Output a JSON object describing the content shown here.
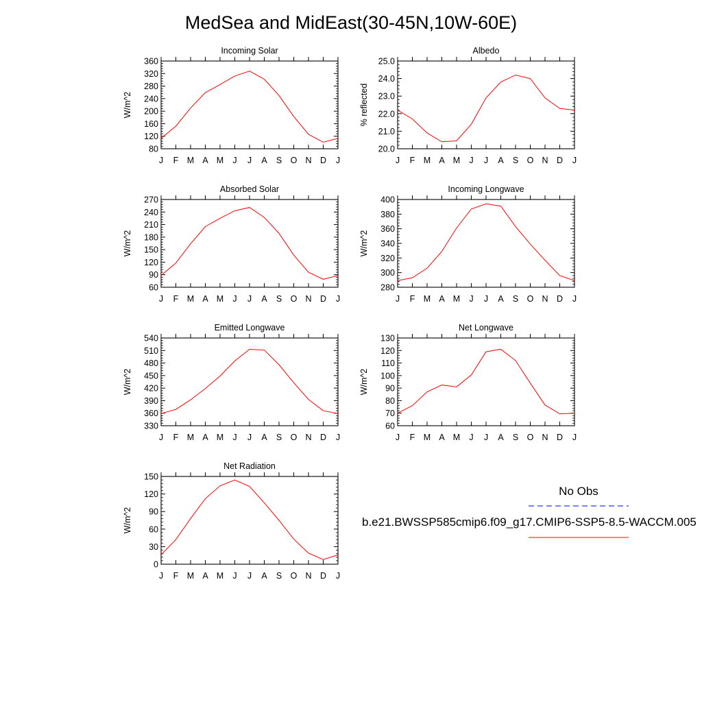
{
  "title": "MedSea and MidEast(30-45N,10W-60E)",
  "months": [
    "J",
    "F",
    "M",
    "A",
    "M",
    "J",
    "J",
    "A",
    "S",
    "O",
    "N",
    "D",
    "J"
  ],
  "chart_data": [
    {
      "type": "line",
      "title": "Incoming Solar",
      "ylabel": "W/m^2",
      "ylim": [
        80,
        360
      ],
      "yticks": [
        80,
        120,
        160,
        200,
        240,
        280,
        320,
        360
      ],
      "yformat": 0,
      "series": [
        {
          "color": "#ff0000",
          "values": [
            113,
            152,
            210,
            259,
            285,
            312,
            328,
            302,
            250,
            183,
            126,
            101,
            113
          ]
        }
      ]
    },
    {
      "type": "line",
      "title": "Albedo",
      "ylabel": "% reflected",
      "ylim": [
        20.0,
        25.0
      ],
      "yticks": [
        20.0,
        21.0,
        22.0,
        23.0,
        24.0,
        25.0
      ],
      "yformat": 1,
      "series": [
        {
          "color": "#ff0000",
          "values": [
            22.2,
            21.7,
            20.9,
            20.4,
            20.45,
            21.4,
            22.9,
            23.8,
            24.2,
            24.0,
            22.9,
            22.3,
            22.2
          ]
        }
      ]
    },
    {
      "type": "line",
      "title": "Absorbed Solar",
      "ylabel": "W/m^2",
      "ylim": [
        60,
        270
      ],
      "yticks": [
        60,
        90,
        120,
        150,
        180,
        210,
        240,
        270
      ],
      "yformat": 0,
      "series": [
        {
          "color": "#ff0000",
          "values": [
            88,
            118,
            164,
            205,
            225,
            243,
            251,
            227,
            189,
            137,
            96,
            79,
            88
          ]
        }
      ]
    },
    {
      "type": "line",
      "title": "Incoming Longwave",
      "ylabel": "W/m^2",
      "ylim": [
        280,
        400
      ],
      "yticks": [
        280,
        300,
        320,
        340,
        360,
        380,
        400
      ],
      "yformat": 0,
      "series": [
        {
          "color": "#ff0000",
          "values": [
            289,
            293,
            306,
            329,
            361,
            387,
            394,
            391,
            363,
            339,
            317,
            296,
            289
          ]
        }
      ]
    },
    {
      "type": "line",
      "title": "Emitted Longwave",
      "ylabel": "W/m^2",
      "ylim": [
        330,
        540
      ],
      "yticks": [
        330,
        360,
        390,
        420,
        450,
        480,
        510,
        540
      ],
      "yformat": 0,
      "series": [
        {
          "color": "#ff0000",
          "values": [
            359,
            369,
            392,
            419,
            449,
            485,
            513,
            511,
            476,
            433,
            393,
            366,
            359
          ]
        }
      ]
    },
    {
      "type": "line",
      "title": "Net Longwave",
      "ylabel": "W/m^2",
      "ylim": [
        60,
        130
      ],
      "yticks": [
        60,
        70,
        80,
        90,
        100,
        110,
        120,
        130
      ],
      "yformat": 0,
      "series": [
        {
          "color": "#ff0000",
          "values": [
            70,
            76,
            87,
            92.5,
            91,
            100.5,
            119,
            121,
            112,
            94,
            76.5,
            69.5,
            70
          ]
        }
      ]
    },
    {
      "type": "line",
      "title": "Net Radiation",
      "ylabel": "W/m^2",
      "ylim": [
        0,
        150
      ],
      "yticks": [
        0,
        30,
        60,
        90,
        120,
        150
      ],
      "yformat": 0,
      "series": [
        {
          "color": "#ff0000",
          "values": [
            16,
            42,
            78,
            112,
            134,
            144,
            133,
            105,
            75,
            43,
            19,
            8,
            16
          ]
        }
      ]
    }
  ],
  "legend": {
    "entries": [
      {
        "label": "No Obs",
        "color": "#0000ff",
        "style": "dashed"
      },
      {
        "label": "b.e21.BWSSP585cmip6.f09_g17.CMIP6-SSP5-8.5-WACCM.005",
        "color": "#ff0000",
        "style": "solid"
      }
    ]
  }
}
